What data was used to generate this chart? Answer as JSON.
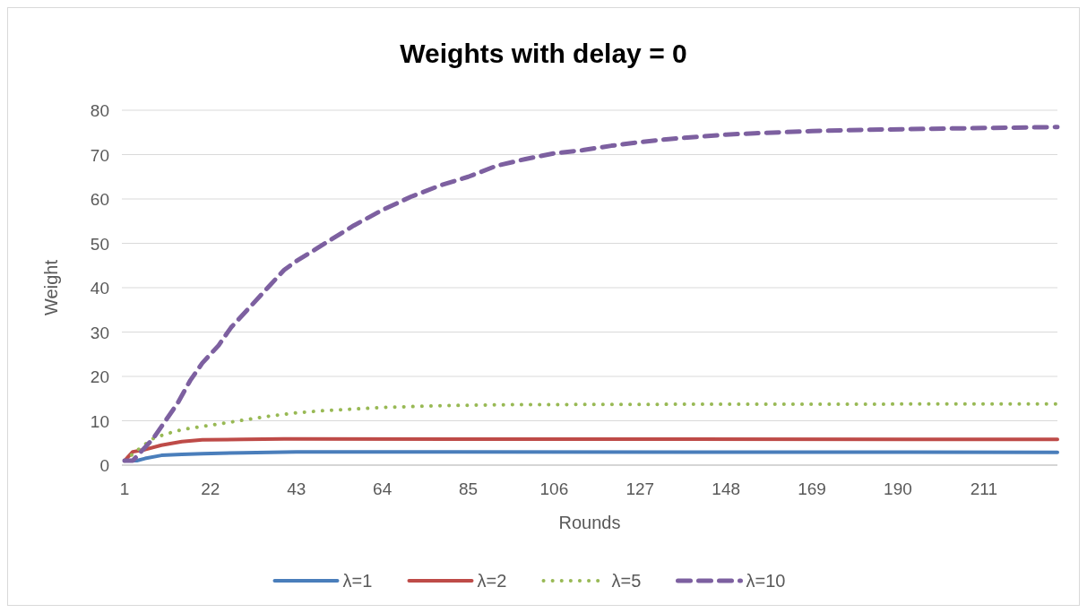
{
  "chart_data": {
    "type": "line",
    "title": "Weights with delay = 0",
    "xlabel": "Rounds",
    "ylabel": "Weight",
    "xlim": [
      1,
      229
    ],
    "xticks": [
      1,
      22,
      43,
      64,
      85,
      106,
      127,
      148,
      169,
      190,
      211
    ],
    "ylim": [
      0,
      80
    ],
    "yticks": [
      0,
      10,
      20,
      30,
      40,
      50,
      60,
      70,
      80
    ],
    "grid": "y",
    "legend": "bottom",
    "series": [
      {
        "name": "λ=1",
        "color": "#4a7ebb",
        "line_style": "solid",
        "x": [
          1,
          4,
          6,
          10,
          15,
          20,
          30,
          43,
          229
        ],
        "values": [
          1,
          1,
          1.5,
          2.2,
          2.4,
          2.6,
          2.8,
          3,
          2.9
        ]
      },
      {
        "name": "λ=2",
        "color": "#be4b48",
        "line_style": "solid",
        "x": [
          1,
          3,
          6,
          10,
          15,
          20,
          30,
          40,
          229
        ],
        "values": [
          1,
          3,
          3.5,
          4.5,
          5.3,
          5.7,
          5.8,
          5.9,
          5.8
        ]
      },
      {
        "name": "λ=5",
        "color": "#98b954",
        "line_style": "dotted",
        "x": [
          1,
          5,
          8,
          11,
          15,
          22,
          29,
          36,
          43,
          50,
          64,
          78,
          92,
          120,
          229
        ],
        "values": [
          1,
          4,
          6,
          7,
          8,
          9,
          10,
          11,
          11.8,
          12.3,
          13,
          13.4,
          13.6,
          13.7,
          13.8
        ]
      },
      {
        "name": "λ=10",
        "color": "#7d60a0",
        "line_style": "dashed",
        "x": [
          1,
          3,
          5,
          8,
          11,
          14,
          17,
          20,
          24,
          27,
          31,
          36,
          40,
          43,
          50,
          57,
          64,
          71,
          78,
          85,
          92,
          99,
          106,
          113,
          120,
          127,
          134,
          141,
          148,
          155,
          169,
          183,
          197,
          211,
          229
        ],
        "values": [
          1,
          1,
          3,
          6,
          10,
          14,
          19,
          23,
          27,
          31,
          35,
          40,
          44,
          46,
          50,
          54,
          57.5,
          60.5,
          63,
          65,
          67.5,
          69,
          70.3,
          71,
          72,
          72.8,
          73.5,
          74,
          74.5,
          74.8,
          75.3,
          75.6,
          75.8,
          76,
          76.2
        ]
      }
    ]
  }
}
